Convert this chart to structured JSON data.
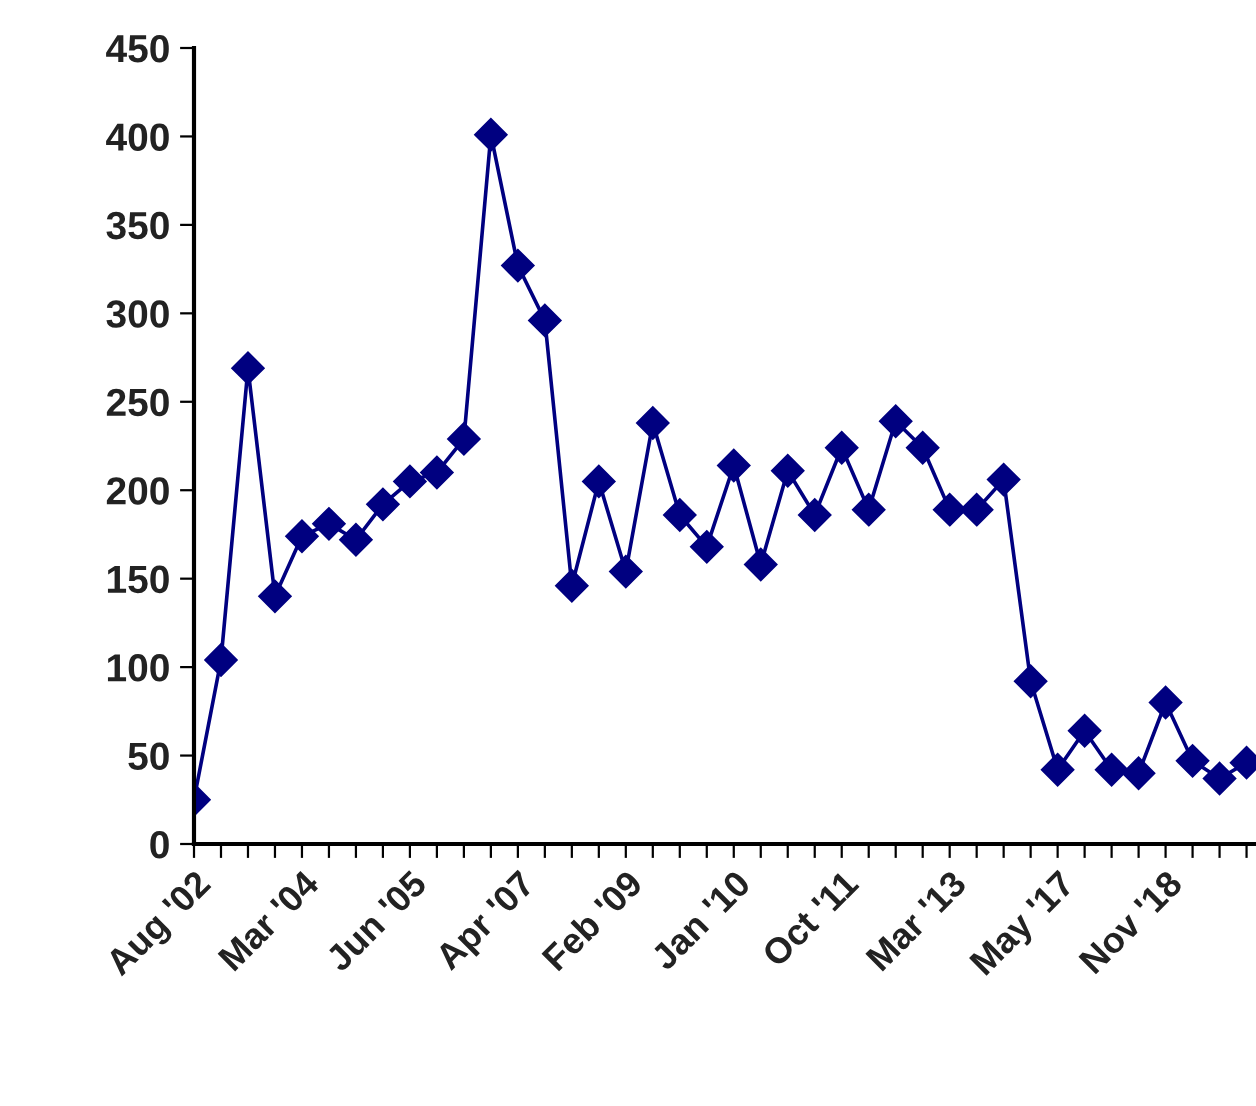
{
  "chart_data": {
    "type": "line",
    "categories": [
      "Aug '02",
      null,
      null,
      null,
      "Mar '04",
      null,
      null,
      null,
      "Jun '05",
      null,
      null,
      null,
      "Apr '07",
      null,
      null,
      null,
      "Feb '09",
      null,
      null,
      null,
      "Jan '10",
      null,
      null,
      null,
      "Oct '11",
      null,
      null,
      null,
      "Mar '13",
      null,
      null,
      null,
      "May '17",
      null,
      null,
      null,
      "Nov '18",
      null,
      null,
      null
    ],
    "series": [
      {
        "color": "#000080",
        "values": [
          25,
          104,
          269,
          140,
          174,
          181,
          172,
          192,
          205,
          210,
          229,
          401,
          327,
          296,
          146,
          205,
          154,
          238,
          186,
          168,
          214,
          158,
          211,
          186,
          224,
          189,
          239,
          224,
          189,
          189,
          206,
          92,
          42,
          64,
          42,
          40,
          80,
          47,
          37,
          46
        ]
      }
    ],
    "ylim": [
      0,
      450
    ],
    "yticks": [
      0,
      50,
      100,
      150,
      200,
      250,
      300,
      350,
      400,
      450
    ],
    "grid": false,
    "legend": false,
    "marker": "diamond",
    "line_style": "solid"
  }
}
